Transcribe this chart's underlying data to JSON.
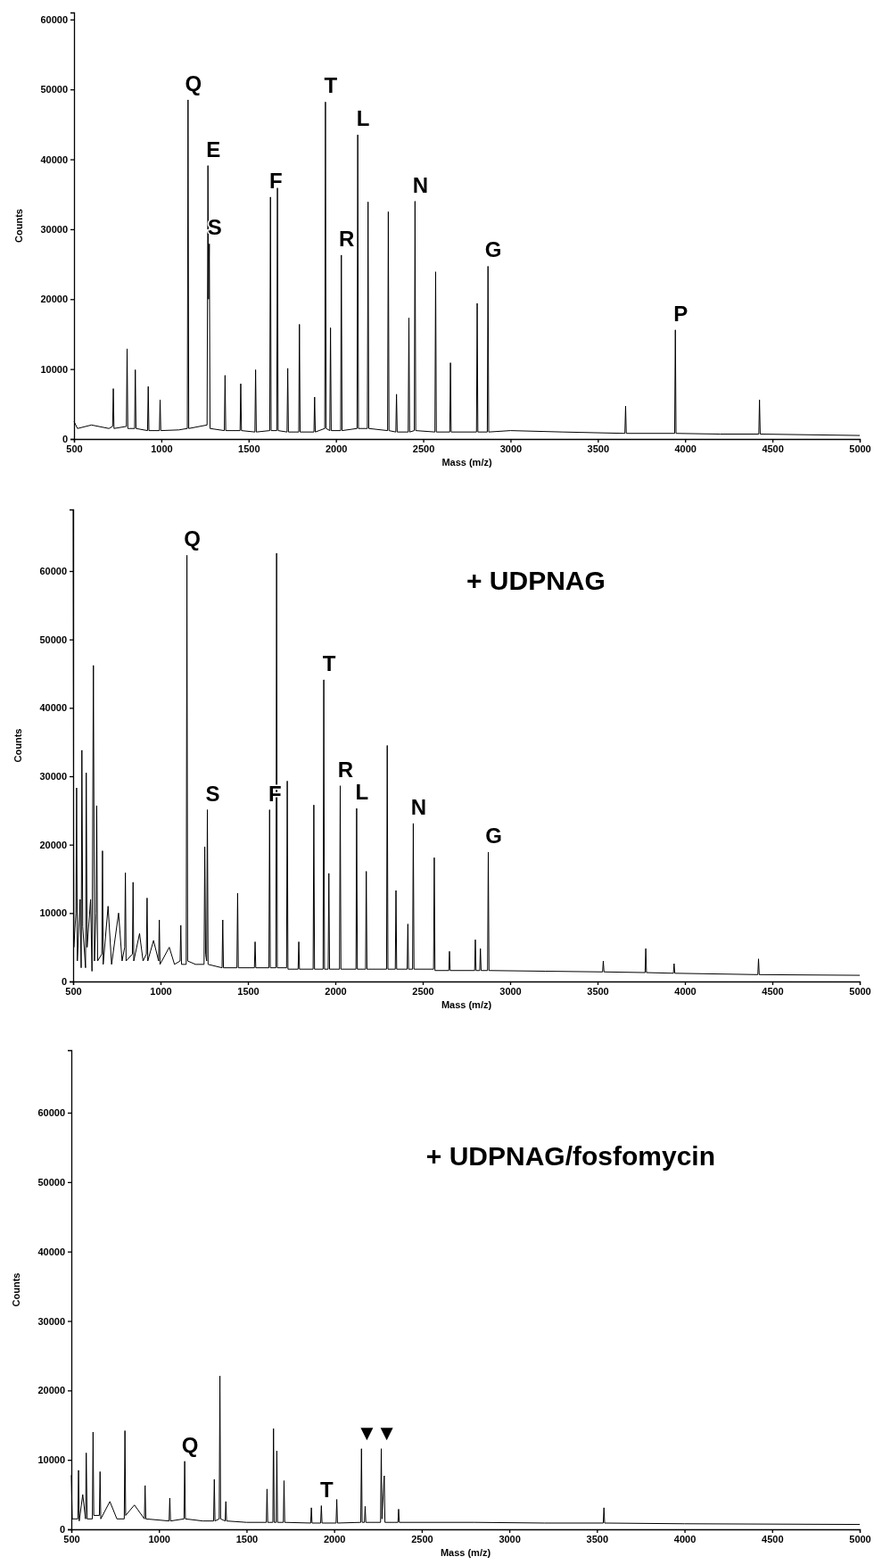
{
  "chart_data": [
    {
      "type": "line",
      "xlabel": "Mass (m/z)",
      "ylabel": "Counts",
      "xlim": [
        500,
        5000
      ],
      "ylim": [
        0,
        61000
      ],
      "xticks": [
        500,
        1000,
        1500,
        2000,
        2500,
        3000,
        3500,
        4000,
        4500,
        5000
      ],
      "yticks": [
        0,
        10000,
        20000,
        30000,
        40000,
        50000,
        60000
      ],
      "color": "#000000",
      "x": [
        500,
        520,
        600,
        700,
        721,
        725,
        729,
        800,
        804,
        808,
        847,
        851,
        855,
        921,
        925,
        929,
        989,
        993,
        997,
        1100,
        1149,
        1153,
        1157,
        1262,
        1267,
        1271,
        1275,
        1279,
        1361,
        1365,
        1369,
        1451,
        1455,
        1459,
        1536,
        1540,
        1544,
        1621,
        1625,
        1629,
        1661,
        1665,
        1669,
        1720,
        1724,
        1728,
        1787,
        1791,
        1795,
        1874,
        1878,
        1882,
        1936,
        1940,
        1944,
        1965,
        1969,
        1973,
        2027,
        2031,
        2035,
        2121,
        2125,
        2129,
        2180,
        2184,
        2188,
        2296,
        2300,
        2304,
        2343,
        2347,
        2351,
        2414,
        2418,
        2422,
        2449,
        2453,
        2457,
        2567,
        2571,
        2575,
        2652,
        2656,
        2660,
        2805,
        2809,
        2813,
        2867,
        2871,
        2875,
        3000,
        3300,
        3655,
        3659,
        3663,
        3940,
        3944,
        3948,
        4200,
        4422,
        4426,
        4430,
        5000
      ],
      "values": [
        2500,
        1500,
        2000,
        1500,
        1800,
        7200,
        1500,
        1800,
        12900,
        1500,
        1500,
        9900,
        1500,
        1200,
        7500,
        1200,
        1200,
        5600,
        1200,
        1300,
        1500,
        48500,
        1500,
        2000,
        39100,
        20000,
        27900,
        1500,
        1200,
        9100,
        1200,
        1200,
        7900,
        1200,
        1000,
        9900,
        1000,
        1200,
        34600,
        1200,
        1200,
        35900,
        1200,
        1000,
        10100,
        1000,
        1000,
        16400,
        1000,
        1000,
        6000,
        1000,
        1500,
        48200,
        1500,
        1200,
        15900,
        1200,
        1200,
        26300,
        1200,
        1500,
        43500,
        1500,
        1500,
        33900,
        1500,
        1200,
        32500,
        1200,
        1000,
        6400,
        1000,
        1000,
        17300,
        1000,
        1200,
        34000,
        1200,
        1000,
        23900,
        1000,
        1000,
        10900,
        1000,
        1000,
        19400,
        1000,
        1000,
        24700,
        1000,
        1200,
        1000,
        800,
        4700,
        800,
        800,
        15600,
        800,
        700,
        700,
        5600,
        700,
        500
      ],
      "annotations": [
        {
          "text": "Q",
          "x": 1153,
          "y": 48500
        },
        {
          "text": "E",
          "x": 1267,
          "y": 39100
        },
        {
          "text": "S",
          "x": 1275,
          "y": 27900
        },
        {
          "text": "F",
          "x": 1625,
          "y": 34600
        },
        {
          "text": "T",
          "x": 1940,
          "y": 48200
        },
        {
          "text": "R",
          "x": 2031,
          "y": 26300
        },
        {
          "text": "L",
          "x": 2125,
          "y": 43500
        },
        {
          "text": "N",
          "x": 2453,
          "y": 34000
        },
        {
          "text": "G",
          "x": 2871,
          "y": 24700
        },
        {
          "text": "P",
          "x": 3944,
          "y": 15600
        }
      ]
    },
    {
      "type": "line",
      "title": "+ UDPNAG",
      "xlabel": "Mass (m/z)",
      "ylabel": "Counts",
      "xlim": [
        500,
        5000
      ],
      "ylim": [
        0,
        69000
      ],
      "xticks": [
        500,
        1000,
        1500,
        2000,
        2500,
        3000,
        3500,
        4000,
        4500,
        5000
      ],
      "yticks": [
        0,
        10000,
        20000,
        30000,
        40000,
        50000,
        60000
      ],
      "color": "#000000",
      "x": [
        500,
        504,
        516,
        520,
        524,
        540,
        546,
        550,
        555,
        571,
        575,
        580,
        600,
        608,
        616,
        622,
        631,
        635,
        640,
        664,
        668,
        672,
        700,
        720,
        760,
        780,
        795,
        799,
        803,
        839,
        843,
        847,
        880,
        900,
        919,
        923,
        927,
        960,
        989,
        993,
        997,
        1050,
        1080,
        1112,
        1116,
        1120,
        1147,
        1151,
        1155,
        1200,
        1249,
        1253,
        1258,
        1264,
        1268,
        1272,
        1352,
        1356,
        1360,
        1437,
        1441,
        1445,
        1537,
        1541,
        1545,
        1620,
        1624,
        1628,
        1660,
        1664,
        1668,
        1721,
        1725,
        1729,
        1787,
        1791,
        1795,
        1873,
        1877,
        1881,
        1930,
        1934,
        1938,
        1959,
        1963,
        1967,
        2024,
        2028,
        2032,
        2118,
        2122,
        2126,
        2173,
        2177,
        2181,
        2293,
        2297,
        2301,
        2343,
        2347,
        2351,
        2411,
        2415,
        2419,
        2442,
        2446,
        2450,
        2562,
        2566,
        2570,
        2649,
        2653,
        2657,
        2797,
        2801,
        2805,
        2826,
        2830,
        2834,
        2871,
        2875,
        2879,
        3200,
        3529,
        3533,
        3537,
        3772,
        3776,
        3780,
        3934,
        3938,
        3942,
        4417,
        4421,
        4425,
        5000
      ],
      "values": [
        69000,
        5000,
        10000,
        28300,
        3000,
        12000,
        2000,
        33800,
        8000,
        2000,
        30500,
        5000,
        12000,
        1500,
        46200,
        3000,
        10000,
        25700,
        3000,
        4000,
        19100,
        2500,
        11000,
        2500,
        10000,
        3000,
        5000,
        15900,
        3000,
        4000,
        14500,
        3000,
        7000,
        3000,
        4000,
        12200,
        3000,
        6000,
        3000,
        9000,
        2500,
        5000,
        2500,
        3000,
        8200,
        2500,
        2500,
        62300,
        3000,
        2500,
        2500,
        19700,
        4000,
        3000,
        25100,
        2500,
        2000,
        9000,
        2000,
        2000,
        12900,
        2000,
        2000,
        5800,
        2000,
        2000,
        25100,
        2000,
        2000,
        62600,
        2000,
        2000,
        29300,
        1800,
        1800,
        5800,
        1800,
        1800,
        25800,
        1800,
        1800,
        44100,
        1800,
        1800,
        15800,
        1800,
        1800,
        28600,
        1800,
        1800,
        25300,
        1800,
        1800,
        16100,
        1800,
        1800,
        34500,
        1800,
        1800,
        13300,
        1800,
        1800,
        8400,
        1800,
        1800,
        23100,
        1800,
        1800,
        18100,
        1600,
        1600,
        4400,
        1600,
        1600,
        6100,
        1600,
        1600,
        4800,
        1600,
        1600,
        18900,
        1600,
        1500,
        1400,
        3000,
        1400,
        1300,
        4800,
        1300,
        1200,
        2600,
        1200,
        1000,
        3300,
        1000,
        900
      ],
      "annotations": [
        {
          "text": "Q",
          "x": 1151,
          "y": 62300
        },
        {
          "text": "S",
          "x": 1268,
          "y": 25100
        },
        {
          "text": "F",
          "x": 1624,
          "y": 25100
        },
        {
          "text": "T",
          "x": 1934,
          "y": 44100
        },
        {
          "text": "R",
          "x": 2028,
          "y": 28600
        },
        {
          "text": "L",
          "x": 2122,
          "y": 25300
        },
        {
          "text": "N",
          "x": 2446,
          "y": 23100
        },
        {
          "text": "G",
          "x": 2875,
          "y": 18900
        }
      ]
    },
    {
      "type": "line",
      "title": "+ UDPNAG/fosfomycin",
      "xlabel": "Mass (m/z)",
      "ylabel": "Counts",
      "xlim": [
        500,
        5000
      ],
      "ylim": [
        0,
        69000
      ],
      "xticks": [
        500,
        1000,
        1500,
        2000,
        2500,
        3000,
        3500,
        4000,
        4500,
        5000
      ],
      "yticks": [
        0,
        10000,
        20000,
        30000,
        40000,
        50000,
        60000
      ],
      "color": "#000000",
      "x": [
        500,
        505,
        537,
        541,
        545,
        565,
        581,
        585,
        590,
        620,
        624,
        628,
        660,
        664,
        668,
        720,
        760,
        802,
        806,
        810,
        860,
        917,
        921,
        925,
        1058,
        1062,
        1066,
        1143,
        1147,
        1151,
        1250,
        1312,
        1316,
        1320,
        1344,
        1348,
        1352,
        1378,
        1382,
        1386,
        1500,
        1613,
        1617,
        1621,
        1650,
        1654,
        1658,
        1669,
        1673,
        1677,
        1710,
        1714,
        1718,
        1866,
        1870,
        1874,
        1923,
        1927,
        1931,
        2011,
        2015,
        2019,
        2152,
        2156,
        2160,
        2173,
        2177,
        2181,
        2265,
        2269,
        2273,
        2286,
        2290,
        2364,
        2368,
        2372,
        2800,
        3200,
        3536,
        3540,
        3544,
        4000,
        5000
      ],
      "values": [
        7800,
        1500,
        1500,
        8500,
        1200,
        5000,
        1500,
        11000,
        1500,
        1500,
        14000,
        2000,
        2000,
        8300,
        1500,
        4000,
        1500,
        1500,
        14200,
        2000,
        3500,
        1500,
        6300,
        1500,
        1200,
        4500,
        1200,
        1500,
        9800,
        1500,
        1200,
        1200,
        7200,
        1200,
        1500,
        22100,
        1500,
        1200,
        4000,
        1200,
        1000,
        1000,
        5800,
        1000,
        1000,
        14500,
        1000,
        1000,
        11300,
        1000,
        1000,
        7000,
        1000,
        900,
        3100,
        900,
        900,
        3400,
        900,
        900,
        4300,
        900,
        1000,
        11600,
        1000,
        1000,
        3300,
        1000,
        1000,
        11600,
        1500,
        7700,
        1000,
        1000,
        2900,
        1000,
        1000,
        900,
        900,
        3100,
        900,
        800,
        700
      ],
      "annotations": [
        {
          "text": "Q",
          "x": 1147,
          "y": 9800
        },
        {
          "text": "T",
          "x": 1927,
          "y": 3400
        },
        {
          "text": "▼",
          "x": 2156,
          "y": 11600
        },
        {
          "text": "▼",
          "x": 2269,
          "y": 11600
        }
      ]
    }
  ]
}
